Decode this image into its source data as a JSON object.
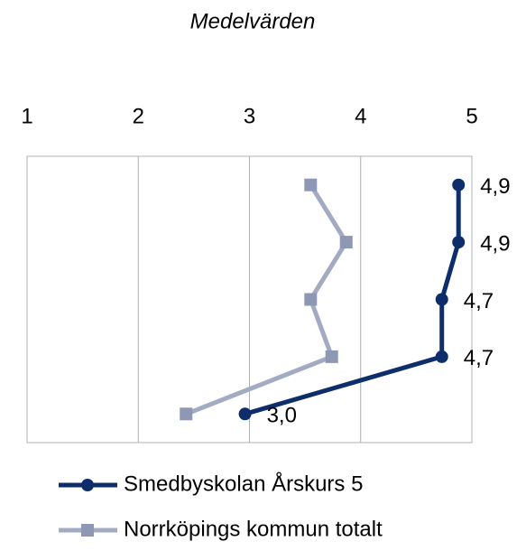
{
  "chart_data": {
    "type": "line",
    "orientation": "horizontal",
    "title": "Medelvärden",
    "categories": [
      null,
      null,
      null,
      null,
      null
    ],
    "series": [
      {
        "name": "Smedbyskolan Årskurs 5",
        "color": "#0e2d6b",
        "marker": "circle",
        "values": [
          4.88,
          4.88,
          4.73,
          4.73,
          2.96
        ],
        "value_labels": [
          "4,9",
          "4,9",
          "4,7",
          "4,7",
          "3,0"
        ]
      },
      {
        "name": "Norrköpings kommun totalt",
        "color": "#a3abc3",
        "marker_color": "#8e98b5",
        "marker": "square",
        "values": [
          3.55,
          3.87,
          3.55,
          3.74,
          2.43
        ]
      }
    ],
    "xlim": [
      1,
      5
    ],
    "xticks": [
      1,
      2,
      3,
      4,
      5
    ],
    "grid": true,
    "legend": "bottom"
  }
}
